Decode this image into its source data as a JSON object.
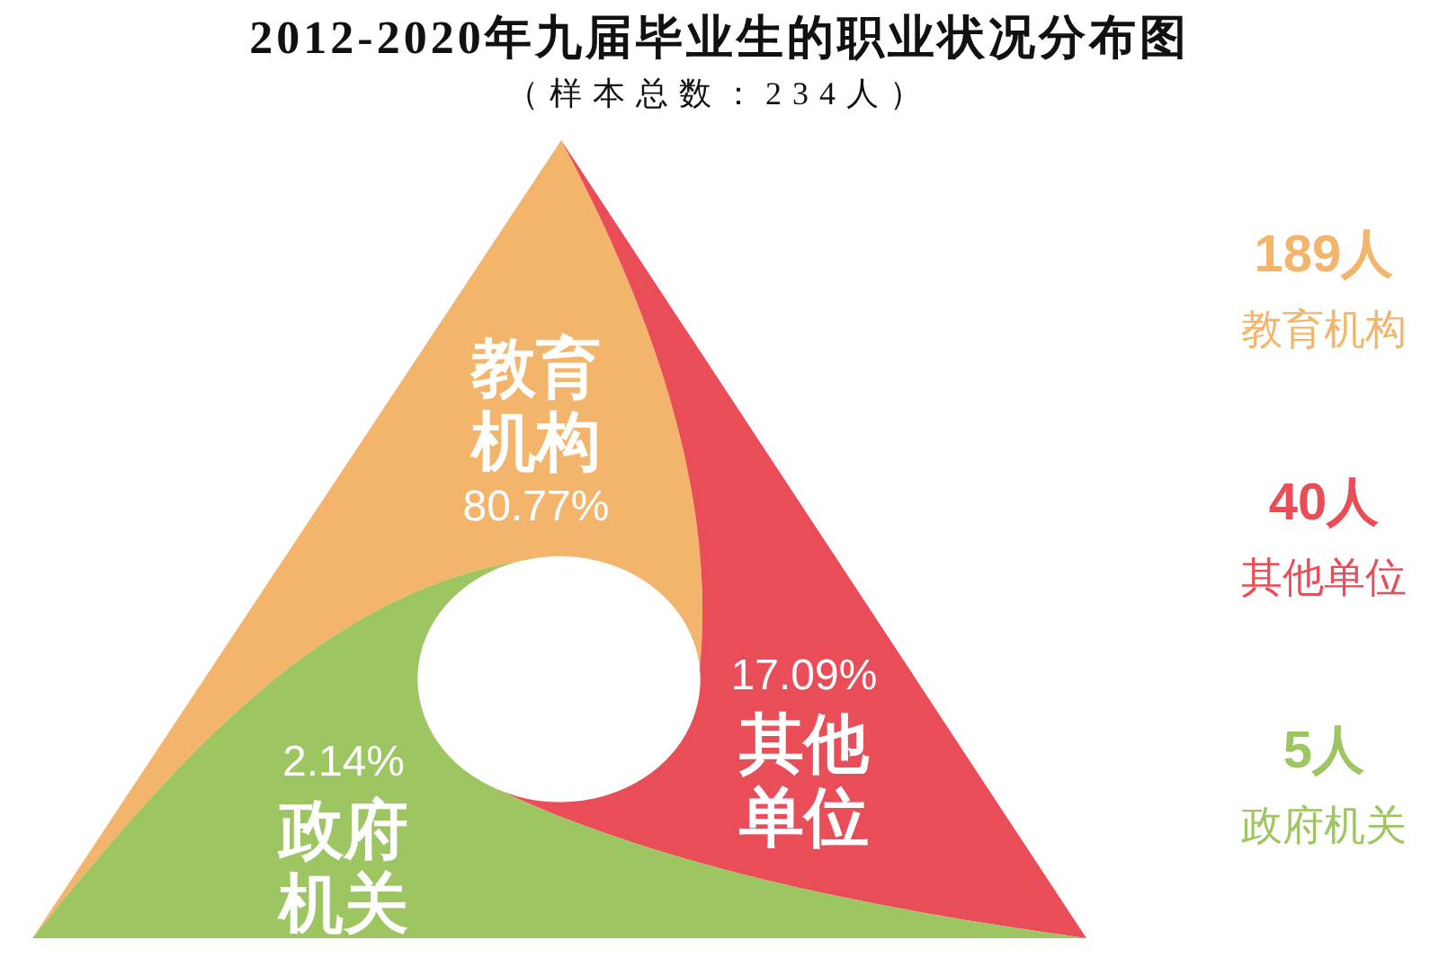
{
  "chart_data": {
    "type": "other",
    "title": "2012-2020年九届毕业生的职业状况分布图",
    "subtitle": "（样本总数：234人）",
    "categories": [
      "教育机构",
      "其他单位",
      "政府机关"
    ],
    "series": [
      {
        "colors": [
          "#f3b56c",
          "#e84d58",
          "#9dc562"
        ],
        "values": [
          80.77,
          17.09,
          2.14
        ],
        "value_labels": [
          "80.77%",
          "17.09%",
          "2.14%"
        ]
      },
      {
        "colors": [
          "#f3b56c",
          "#e84d58",
          "#9dc562"
        ],
        "values": [
          189,
          40,
          5
        ],
        "value_labels": [
          "189人",
          "40人",
          "5人"
        ]
      }
    ]
  }
}
